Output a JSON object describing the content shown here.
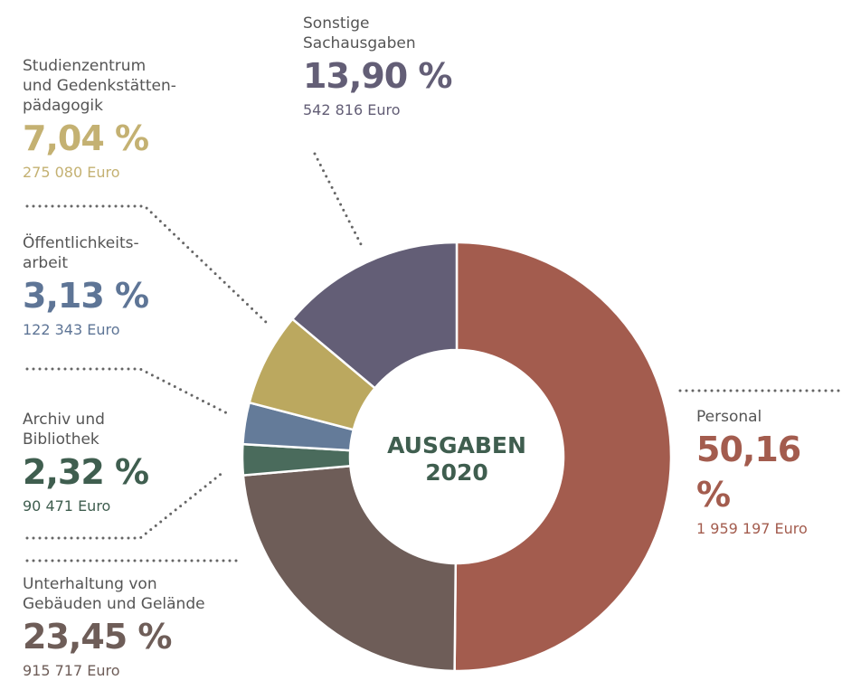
{
  "chart_data": {
    "type": "donut",
    "center_label": "AUSGABEN\n2020",
    "categories": [
      "Personal",
      "Unterhaltung von\nGebäuden und Gelände",
      "Archiv und\nBibliothek",
      "Öffentlichkeits-\narbeit",
      "Studienzentrum\nund Gedenkstätten-\npädagogik",
      "Sonstige\nSachausgaben"
    ],
    "values": [
      50.16,
      23.45,
      2.32,
      3.13,
      7.04,
      13.9
    ],
    "value_labels": [
      "50,16 %",
      "23,45 %",
      "2,32 %",
      "3,13 %",
      "7,04 %",
      "13,90 %"
    ],
    "amount_labels": [
      "1 959 197 Euro",
      "915 717 Euro",
      "90 471 Euro",
      "122 343 Euro",
      "275 080 Euro",
      "542 816 Euro"
    ],
    "colors": [
      "#a35c4e",
      "#6e5d58",
      "#4a6b5c",
      "#647b99",
      "#bba85f",
      "#635e76"
    ],
    "label_colors": [
      "#a35c4e",
      "#6e5d58",
      "#3f5e4f",
      "#5e7596",
      "#c4b172",
      "#635e76"
    ]
  }
}
